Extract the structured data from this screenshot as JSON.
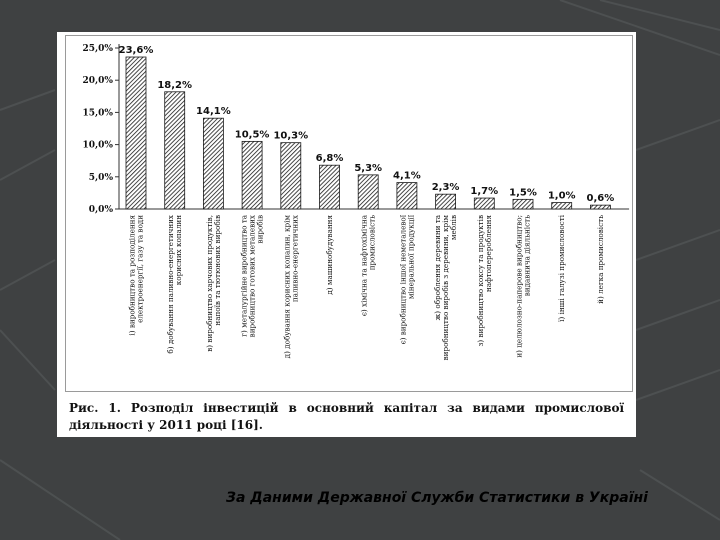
{
  "chart_data": {
    "type": "bar",
    "categories": [
      "і) виробництво та розподілення електроенергії, газу та води",
      "б) добування паливно-енергетичних корисних копалин",
      "в) виробництво харчових продуктів, напоїв та тютюнових виробів",
      "г) металургійне виробництво та виробництво готових металевих виробів",
      "д) добування корисних копалин, крім паливно-енергетичних",
      "д) машинобудування",
      "є) хімічна та нафтохімічна промисловість",
      "є) виробництво іншої неметалевої мінеральної продукції",
      "ж) оброблення деревини та виробництво виробів з деревини, крім меблів",
      "з) виробництво коксу та продуктів нафтоперероблення",
      "и) целюлозно-паперове виробництво; видавнича діяльність",
      "ї) інші галузі промисловості",
      "й) легка промисловість"
    ],
    "values": [
      23.6,
      18.2,
      14.1,
      10.5,
      10.3,
      6.8,
      5.3,
      4.1,
      2.3,
      1.7,
      1.5,
      1.0,
      0.6
    ],
    "value_labels": [
      "23,6%",
      "18,2%",
      "14,1%",
      "10,5%",
      "10,3%",
      "6,8%",
      "5,3%",
      "4,1%",
      "2,3%",
      "1,7%",
      "1,5%",
      "1,0%",
      "0,6%"
    ],
    "y_ticks": [
      0,
      5,
      10,
      15,
      20,
      25
    ],
    "y_tick_labels": [
      "0,0%",
      "5,0%",
      "10,0%",
      "15,0%",
      "20,0%",
      "25,0%"
    ],
    "ylim": [
      0,
      25
    ],
    "title": "",
    "xlabel": "",
    "ylabel": "",
    "grid": false,
    "bar_fill": "hatched",
    "colors": {
      "bar": "#1a1a1a",
      "axis": "#333333"
    }
  },
  "caption": "Рис. 1. Розподіл інвестицій в основний капітал за видами промислової діяльності у 2011 році [16].",
  "source_text": "За Даними Державної Служби Статистики в Україні"
}
